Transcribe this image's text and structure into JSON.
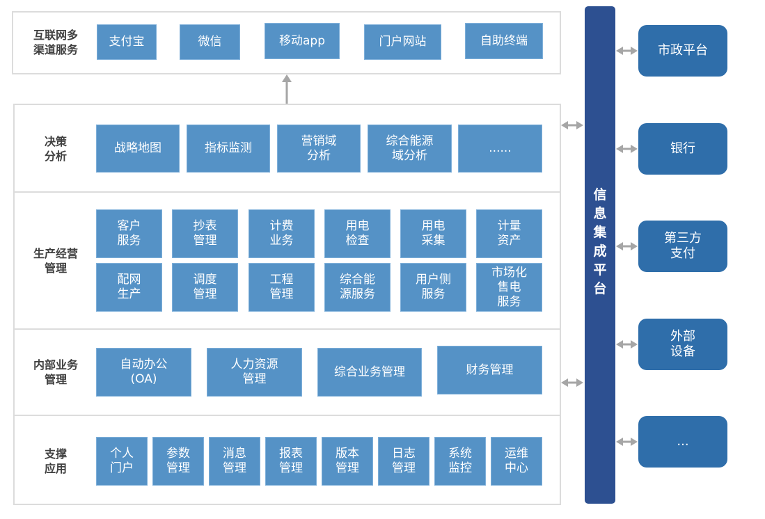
{
  "layers": [
    {
      "label": "互联网多\n渠道服务",
      "items": [
        "支付宝",
        "微信",
        "移动app",
        "门户网站",
        "自助终端"
      ]
    },
    {
      "label": "决策\n分析",
      "items": [
        "战略地图",
        "指标监测",
        "营销域\n分析",
        "综合能源\n域分析",
        "......"
      ]
    },
    {
      "label": "生产经营\n管理",
      "items": [
        "客户\n服务",
        "抄表\n管理",
        "计费\n业务",
        "用电\n检查",
        "用电\n采集",
        "计量\n资产",
        "配网\n生产",
        "调度\n管理",
        "工程\n管理",
        "综合能\n源服务",
        "用户侧\n服务",
        "市场化\n售电\n服务"
      ]
    },
    {
      "label": "内部业务\n管理",
      "items": [
        "自动办公\n(OA)",
        "人力资源\n管理",
        "综合业务管理",
        "财务管理"
      ]
    },
    {
      "label": "支撑\n应用",
      "items": [
        "个人\n门户",
        "参数\n管理",
        "消息\n管理",
        "报表\n管理",
        "版本\n管理",
        "日志\n管理",
        "系统\n监控",
        "运维\n中心"
      ]
    }
  ],
  "bus": {
    "label": "信息集成平台"
  },
  "external": [
    "市政平台",
    "银行",
    "第三方\n支付",
    "外部\n设备",
    "..."
  ],
  "colors": {
    "box": "#5592c6",
    "bus": "#2d5091",
    "external": "#2f6eaa",
    "arrow": "#a6a6a6"
  }
}
